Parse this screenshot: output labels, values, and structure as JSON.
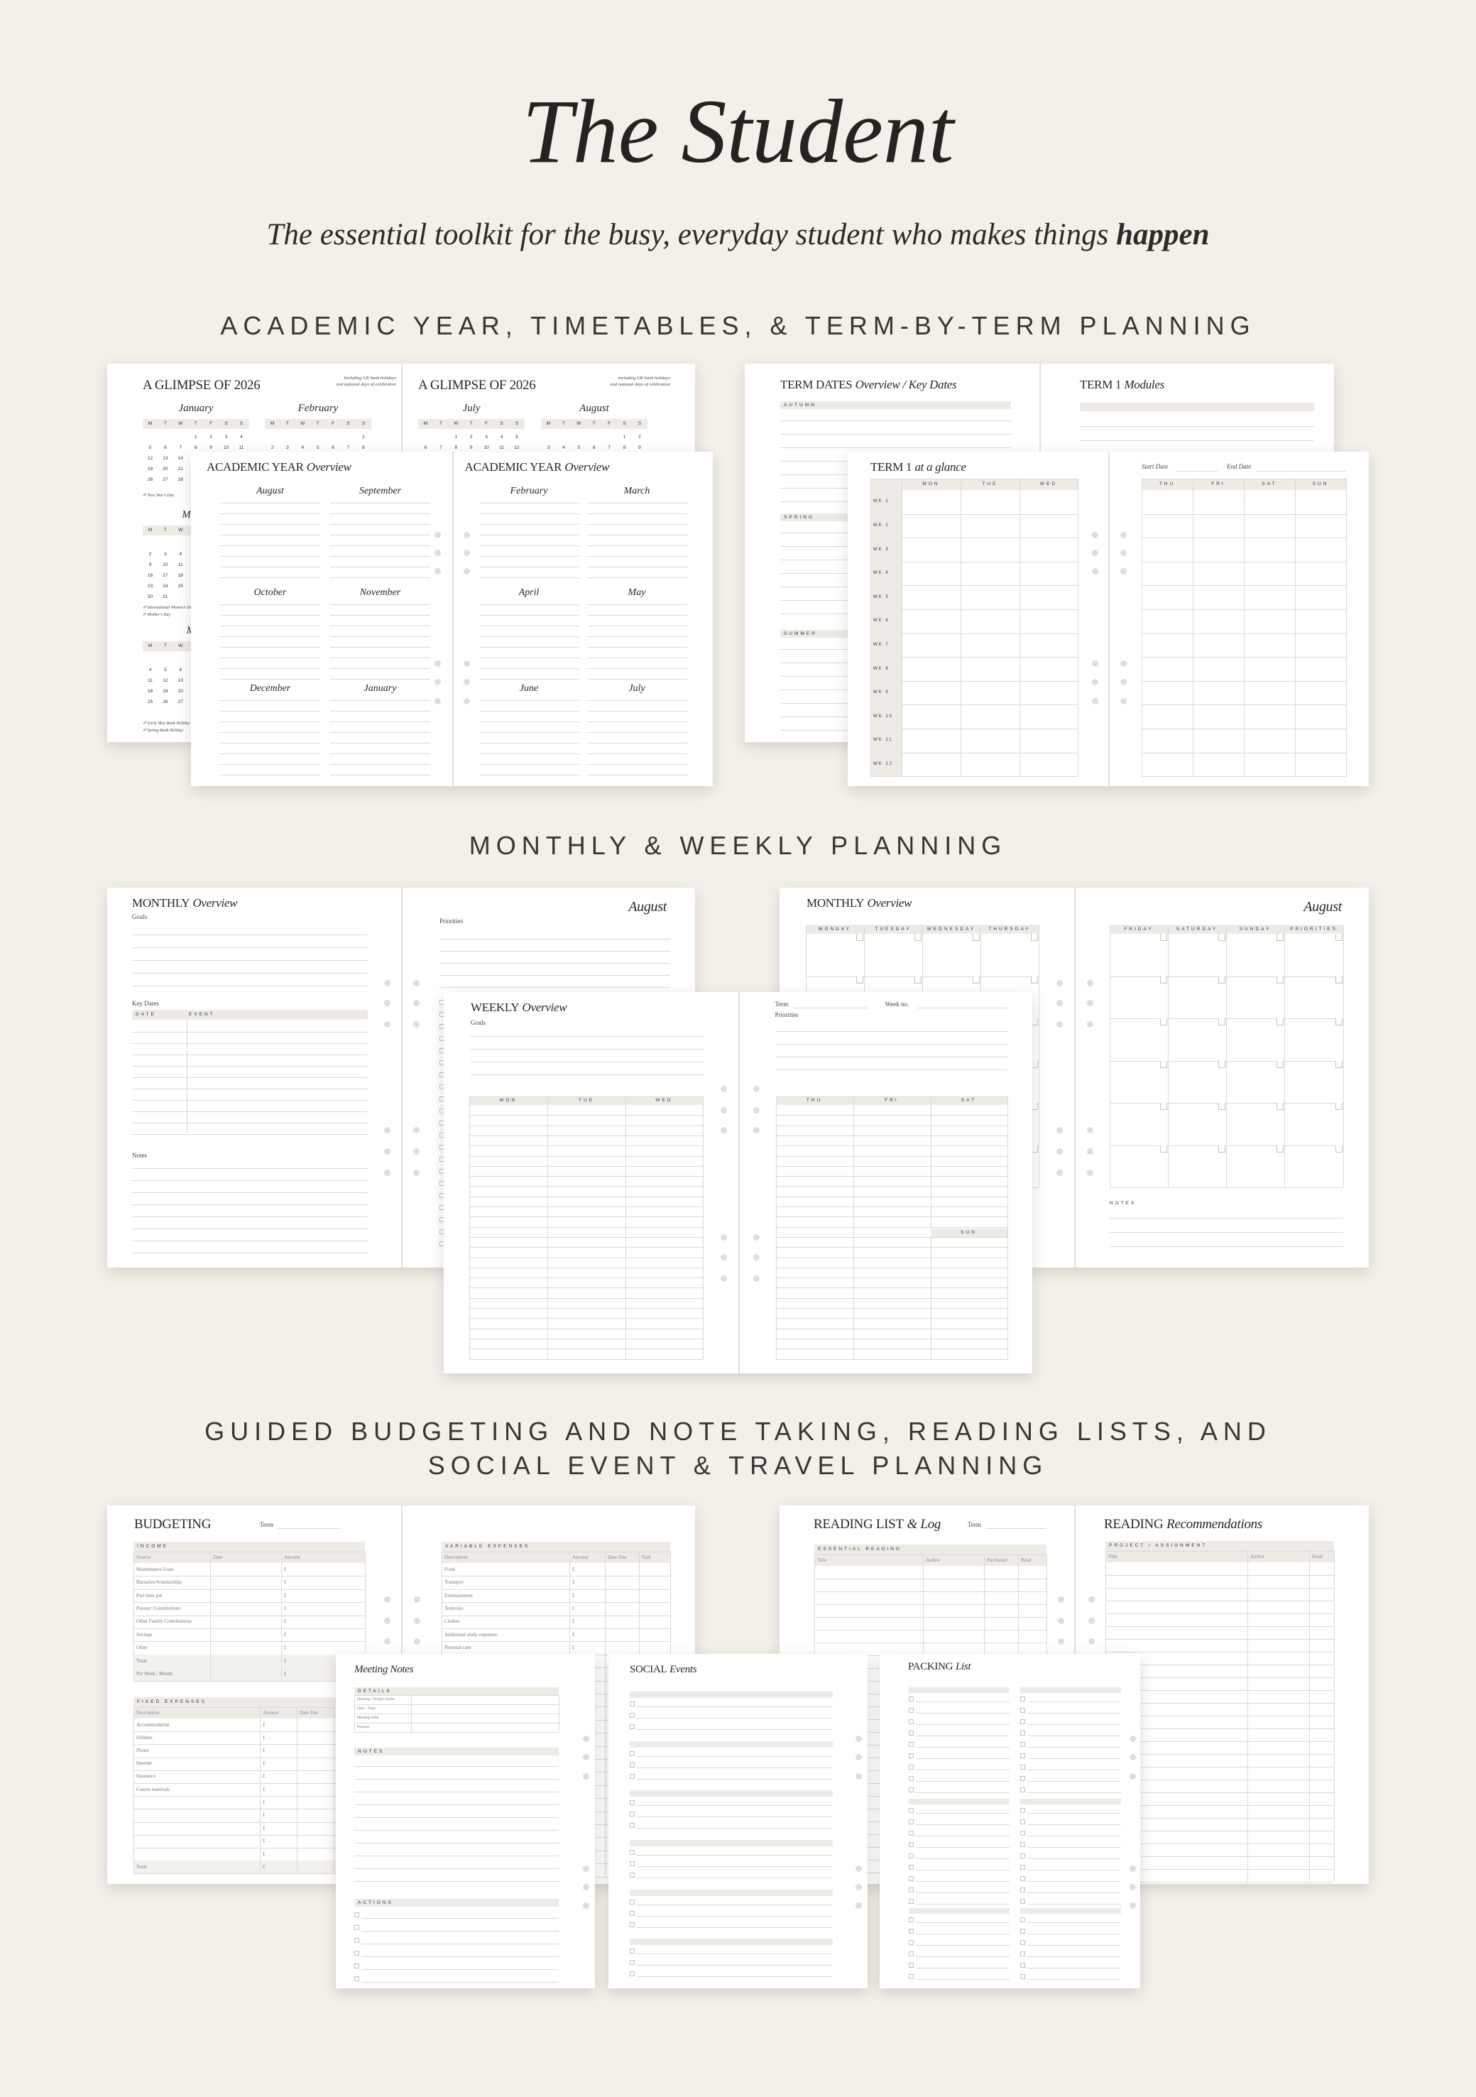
{
  "header": {
    "title": "The Student",
    "subtitle_main": "The essential toolkit for the busy, everyday student who makes things",
    "subtitle_emph": "happen"
  },
  "sections": {
    "academic_heading": "ACADEMIC YEAR, TIMETABLES, & TERM-BY-TERM PLANNING",
    "monthly_heading": "MONTHLY & WEEKLY PLANNING",
    "guided_heading_lines": [
      "GUIDED BUDGETING AND NOTE TAKING, READING LISTS, AND",
      "SOCIAL EVENT & TRAVEL PLANNING"
    ]
  },
  "glimpse": {
    "title": "A GLIMPSE OF 2026",
    "note_lines": [
      "Including UK bank holidays",
      "and national days of celebration"
    ],
    "weekdays": [
      "M",
      "T",
      "W",
      "T",
      "F",
      "S",
      "S"
    ],
    "months": [
      "January",
      "February",
      "March",
      "May",
      "July",
      "August"
    ],
    "holidays": [
      "New Year's Day",
      "International Women's Day",
      "Mother's Day",
      "Early May Bank Holiday",
      "Spring Bank Holiday"
    ]
  },
  "academic": {
    "title": "ACADEMIC YEAR",
    "title_em": "Overview",
    "left_months": [
      "August",
      "September",
      "October",
      "November",
      "December",
      "January"
    ],
    "right_months": [
      "February",
      "March",
      "April",
      "May",
      "June",
      "July"
    ]
  },
  "term_dates": {
    "title": "TERM DATES",
    "title_em": "Overview / Key Dates",
    "seasons": [
      "AUTUMN",
      "SPRING",
      "SUMMER"
    ]
  },
  "modules": {
    "title": "TERM 1",
    "title_em": "Modules"
  },
  "glance": {
    "title": "TERM 1",
    "title_em": "at a glance",
    "days_left": [
      "MON",
      "TUE",
      "WED"
    ],
    "days_right": [
      "THU",
      "FRI",
      "SAT",
      "SUN"
    ],
    "weeks": [
      "WK 1",
      "WK 2",
      "WK 3",
      "WK 4",
      "WK 5",
      "WK 6",
      "WK 7",
      "WK 8",
      "WK 9",
      "WK 10",
      "WK 11",
      "WK 12"
    ],
    "start_label": "Start Date",
    "end_label": "End Date"
  },
  "monthly_a": {
    "title": "MONTHLY",
    "title_em": "Overview",
    "goals": "Goals",
    "key_dates": "Key Dates",
    "cols": [
      "DATE",
      "EVENT"
    ],
    "notes": "Notes",
    "month": "August",
    "priorities": "Priorities"
  },
  "monthly_b": {
    "title": "MONTHLY",
    "title_em": "Overview",
    "days_left": [
      "MONDAY",
      "TUESDAY",
      "WEDNESDAY",
      "THURSDAY"
    ],
    "days_right": [
      "FRIDAY",
      "SATURDAY",
      "SUNDAY",
      "PRIORITIES"
    ],
    "month": "August",
    "notes": "NOTES"
  },
  "weekly": {
    "title": "WEEKLY",
    "title_em": "Overview",
    "goals": "Goals",
    "days_left": [
      "MON",
      "TUE",
      "WED"
    ],
    "term": "Term",
    "week_no": "Week no.",
    "priorities": "Priorities",
    "days_right": [
      "THU",
      "FRI",
      "SAT"
    ],
    "sun": "SUN"
  },
  "budgeting": {
    "title": "BUDGETING",
    "term": "Term",
    "currency": "£",
    "income": {
      "label": "INCOME",
      "cols": [
        "Source",
        "Date",
        "Amount"
      ],
      "rows": [
        "Maintenance Loan",
        "Bursaries/Scholarships",
        "Part time job",
        "Parents' Contributions",
        "Other Family Contributions",
        "Savings",
        "Other",
        "Total",
        "Per Week / Month"
      ]
    },
    "fixed": {
      "label": "FIXED EXPENSES",
      "cols": [
        "Description",
        "Amount",
        "Date Due"
      ],
      "rows": [
        "Accommodation",
        "Utilities",
        "Phone",
        "Internet",
        "Insurance",
        "Course materials"
      ],
      "total": "Total"
    },
    "variable": {
      "label": "VARIABLE EXPENSES",
      "cols": [
        "Description",
        "Amount",
        "Date Due",
        "Paid"
      ],
      "rows": [
        "Food",
        "Transport",
        "Entertainment",
        "Toiletries",
        "Clothes",
        "Additional study expenses",
        "Personal care"
      ]
    }
  },
  "reading": {
    "title": "READING LIST",
    "title_em": "& Log",
    "term": "Term",
    "essential": {
      "label": "ESSENTIAL READING",
      "cols": [
        "Title",
        "Author",
        "Purchased",
        "Read"
      ]
    },
    "rec_title": "READING",
    "rec_em": "Recommendations",
    "project": {
      "label": "PROJECT / ASSIGNMENT",
      "cols": [
        "Title",
        "Author",
        "Read"
      ]
    }
  },
  "meeting": {
    "title": "Meeting Notes",
    "details_label": "DETAILS",
    "details_rows": [
      "Meeting / Project Name",
      "Date / Time",
      "Meeting With",
      "Purpose"
    ],
    "notes_label": "NOTES",
    "actions_label": "ACTIONS"
  },
  "social": {
    "title": "SOCIAL",
    "title_em": "Events"
  },
  "packing": {
    "title": "PACKING",
    "title_em": "List"
  },
  "colors": {
    "background": "#f3f0e9",
    "page": "#ffffff",
    "band": "#eeebe7",
    "rule": "#dcd9d5",
    "text": "#2a2624",
    "hole": "#e1deda"
  }
}
